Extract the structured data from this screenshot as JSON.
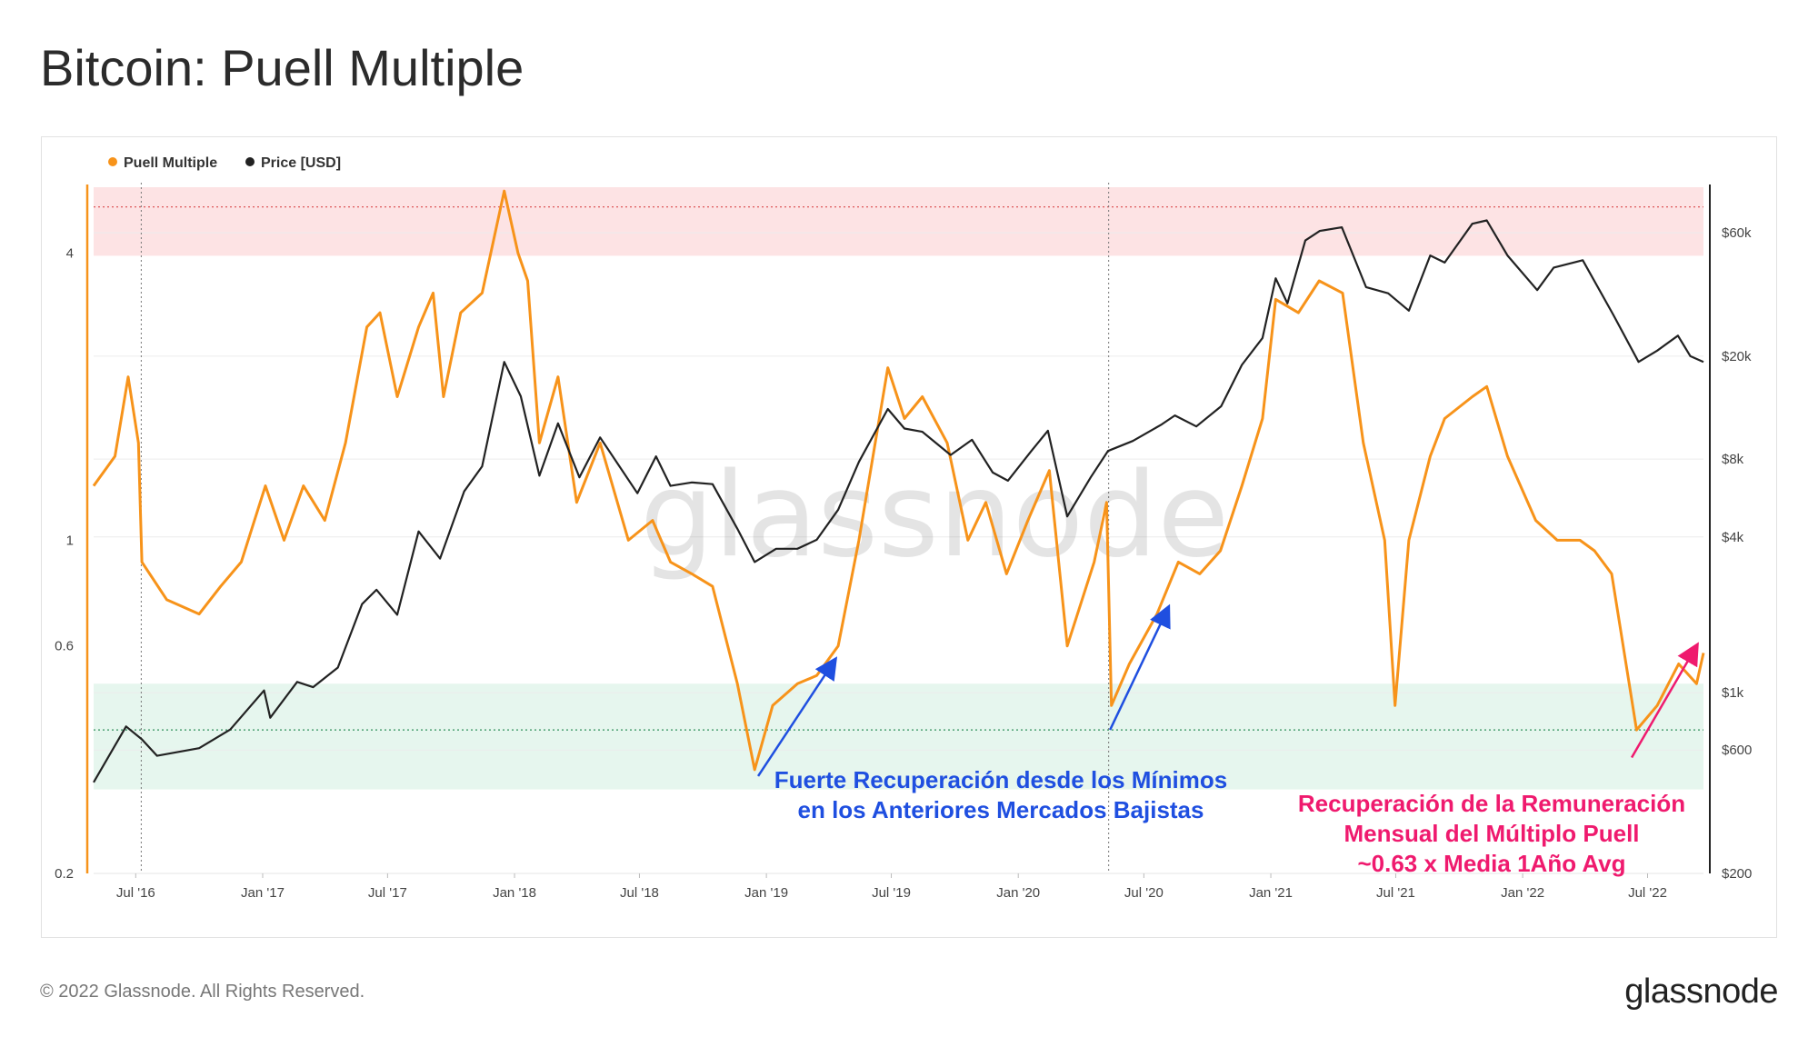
{
  "title": "Bitcoin: Puell Multiple",
  "footer": {
    "copyright": "© 2022 Glassnode. All Rights Reserved.",
    "logo": "glassnode"
  },
  "watermark": "glassnode",
  "legend": [
    {
      "label": "Puell Multiple",
      "color": "#f7931a"
    },
    {
      "label": "Price [USD]",
      "color": "#222222"
    }
  ],
  "colors": {
    "puell": "#f7931a",
    "price": "#222222",
    "top_band": "#fde3e4",
    "bottom_band": "#e6f6ee",
    "annot_blue": "#1f4fe0",
    "annot_pink": "#ef1a6e"
  },
  "annotations": {
    "blue_line1": "Fuerte Recuperación desde los Mínimos",
    "blue_line2": "en los Anteriores Mercados Bajistas",
    "pink_line1": "Recuperación de la Remuneración",
    "pink_line2": "Mensual del Múltiplo Puell",
    "pink_line3": "~0.63 x Media 1Año Avg"
  },
  "chart_data": {
    "type": "line",
    "title": "Bitcoin: Puell Multiple",
    "x_range": [
      "2016-05-01",
      "2022-09-20"
    ],
    "x_ticks": [
      "Jul '16",
      "Jan '17",
      "Jul '17",
      "Jan '18",
      "Jul '18",
      "Jan '19",
      "Jul '19",
      "Jan '20",
      "Jul '20",
      "Jan '21",
      "Jul '21",
      "Jan '22",
      "Jul '22"
    ],
    "left_axis": {
      "scale": "log",
      "range": [
        0.2,
        5.5
      ],
      "ticks": [
        "0.2",
        "0.6",
        "1",
        "4"
      ]
    },
    "right_axis": {
      "scale": "log",
      "range": [
        200,
        90000
      ],
      "ticks": [
        "$200",
        "$600",
        "$1k",
        "$4k",
        "$8k",
        "$20k",
        "$60k"
      ]
    },
    "bands": {
      "overvalued": [
        3.95,
        5.5
      ],
      "undervalued": [
        0.3,
        0.5
      ],
      "ref_lines": [
        5.0,
        0.4
      ]
    },
    "halvings": [
      "2016-07-09",
      "2020-05-11"
    ],
    "series": [
      {
        "name": "Puell Multiple",
        "axis": "left",
        "points": [
          [
            "2016-05-01",
            1.3
          ],
          [
            "2016-06-01",
            1.5
          ],
          [
            "2016-06-20",
            2.2
          ],
          [
            "2016-07-05",
            1.6
          ],
          [
            "2016-07-10",
            0.9
          ],
          [
            "2016-08-15",
            0.75
          ],
          [
            "2016-10-01",
            0.7
          ],
          [
            "2016-11-01",
            0.8
          ],
          [
            "2016-12-01",
            0.9
          ],
          [
            "2017-01-05",
            1.3
          ],
          [
            "2017-02-01",
            1.0
          ],
          [
            "2017-03-01",
            1.3
          ],
          [
            "2017-04-01",
            1.1
          ],
          [
            "2017-05-01",
            1.6
          ],
          [
            "2017-06-01",
            2.8
          ],
          [
            "2017-06-20",
            3.0
          ],
          [
            "2017-07-15",
            2.0
          ],
          [
            "2017-08-15",
            2.8
          ],
          [
            "2017-09-05",
            3.3
          ],
          [
            "2017-09-20",
            2.0
          ],
          [
            "2017-10-15",
            3.0
          ],
          [
            "2017-11-15",
            3.3
          ],
          [
            "2017-12-17",
            5.4
          ],
          [
            "2018-01-06",
            4.0
          ],
          [
            "2018-01-20",
            3.5
          ],
          [
            "2018-02-06",
            1.6
          ],
          [
            "2018-03-05",
            2.2
          ],
          [
            "2018-04-01",
            1.2
          ],
          [
            "2018-05-05",
            1.6
          ],
          [
            "2018-06-15",
            1.0
          ],
          [
            "2018-07-20",
            1.1
          ],
          [
            "2018-08-15",
            0.9
          ],
          [
            "2018-09-15",
            0.85
          ],
          [
            "2018-10-15",
            0.8
          ],
          [
            "2018-11-20",
            0.5
          ],
          [
            "2018-12-15",
            0.33
          ],
          [
            "2019-01-10",
            0.45
          ],
          [
            "2019-02-15",
            0.5
          ],
          [
            "2019-03-15",
            0.52
          ],
          [
            "2019-04-15",
            0.6
          ],
          [
            "2019-05-15",
            1.0
          ],
          [
            "2019-06-26",
            2.3
          ],
          [
            "2019-07-20",
            1.8
          ],
          [
            "2019-08-15",
            2.0
          ],
          [
            "2019-09-20",
            1.6
          ],
          [
            "2019-10-20",
            1.0
          ],
          [
            "2019-11-15",
            1.2
          ],
          [
            "2019-12-15",
            0.85
          ],
          [
            "2020-01-15",
            1.1
          ],
          [
            "2020-02-15",
            1.4
          ],
          [
            "2020-03-12",
            0.6
          ],
          [
            "2020-04-20",
            0.9
          ],
          [
            "2020-05-08",
            1.2
          ],
          [
            "2020-05-15",
            0.45
          ],
          [
            "2020-06-10",
            0.55
          ],
          [
            "2020-07-20",
            0.7
          ],
          [
            "2020-08-20",
            0.9
          ],
          [
            "2020-09-20",
            0.85
          ],
          [
            "2020-10-20",
            0.95
          ],
          [
            "2020-11-20",
            1.3
          ],
          [
            "2020-12-20",
            1.8
          ],
          [
            "2021-01-08",
            3.2
          ],
          [
            "2021-02-10",
            3.0
          ],
          [
            "2021-03-12",
            3.5
          ],
          [
            "2021-04-15",
            3.3
          ],
          [
            "2021-05-15",
            1.6
          ],
          [
            "2021-06-15",
            1.0
          ],
          [
            "2021-06-30",
            0.45
          ],
          [
            "2021-07-20",
            1.0
          ],
          [
            "2021-08-20",
            1.5
          ],
          [
            "2021-09-10",
            1.8
          ],
          [
            "2021-10-20",
            2.0
          ],
          [
            "2021-11-10",
            2.1
          ],
          [
            "2021-12-10",
            1.5
          ],
          [
            "2022-01-20",
            1.1
          ],
          [
            "2022-02-20",
            1.0
          ],
          [
            "2022-03-25",
            1.0
          ],
          [
            "2022-04-15",
            0.95
          ],
          [
            "2022-05-10",
            0.85
          ],
          [
            "2022-06-15",
            0.4
          ],
          [
            "2022-07-15",
            0.45
          ],
          [
            "2022-08-15",
            0.55
          ],
          [
            "2022-09-10",
            0.5
          ],
          [
            "2022-09-20",
            0.58
          ]
        ]
      },
      {
        "name": "Price [USD]",
        "axis": "right",
        "points": [
          [
            "2016-05-01",
            450
          ],
          [
            "2016-06-17",
            740
          ],
          [
            "2016-07-10",
            660
          ],
          [
            "2016-08-01",
            570
          ],
          [
            "2016-10-01",
            610
          ],
          [
            "2016-11-15",
            720
          ],
          [
            "2017-01-03",
            1020
          ],
          [
            "2017-01-12",
            800
          ],
          [
            "2017-02-20",
            1100
          ],
          [
            "2017-03-15",
            1050
          ],
          [
            "2017-04-20",
            1250
          ],
          [
            "2017-05-25",
            2200
          ],
          [
            "2017-06-15",
            2500
          ],
          [
            "2017-07-15",
            2000
          ],
          [
            "2017-08-15",
            4200
          ],
          [
            "2017-09-15",
            3300
          ],
          [
            "2017-10-20",
            6000
          ],
          [
            "2017-11-15",
            7500
          ],
          [
            "2017-12-17",
            19000
          ],
          [
            "2018-01-10",
            14000
          ],
          [
            "2018-02-06",
            6900
          ],
          [
            "2018-03-05",
            11000
          ],
          [
            "2018-04-05",
            6800
          ],
          [
            "2018-05-05",
            9700
          ],
          [
            "2018-06-28",
            5900
          ],
          [
            "2018-07-25",
            8200
          ],
          [
            "2018-08-15",
            6300
          ],
          [
            "2018-09-15",
            6500
          ],
          [
            "2018-10-15",
            6400
          ],
          [
            "2018-11-20",
            4300
          ],
          [
            "2018-12-15",
            3200
          ],
          [
            "2019-01-15",
            3600
          ],
          [
            "2019-02-15",
            3600
          ],
          [
            "2019-03-15",
            3900
          ],
          [
            "2019-04-15",
            5100
          ],
          [
            "2019-05-15",
            7800
          ],
          [
            "2019-06-26",
            12500
          ],
          [
            "2019-07-20",
            10500
          ],
          [
            "2019-08-15",
            10200
          ],
          [
            "2019-09-25",
            8300
          ],
          [
            "2019-10-26",
            9500
          ],
          [
            "2019-11-25",
            7100
          ],
          [
            "2019-12-17",
            6600
          ],
          [
            "2020-01-20",
            8600
          ],
          [
            "2020-02-13",
            10300
          ],
          [
            "2020-03-12",
            4800
          ],
          [
            "2020-04-15",
            6800
          ],
          [
            "2020-05-10",
            8600
          ],
          [
            "2020-06-15",
            9400
          ],
          [
            "2020-07-27",
            10900
          ],
          [
            "2020-08-15",
            11800
          ],
          [
            "2020-09-15",
            10700
          ],
          [
            "2020-10-21",
            12800
          ],
          [
            "2020-11-20",
            18500
          ],
          [
            "2020-12-20",
            23500
          ],
          [
            "2021-01-08",
            40000
          ],
          [
            "2021-01-25",
            32000
          ],
          [
            "2021-02-20",
            56000
          ],
          [
            "2021-03-13",
            61000
          ],
          [
            "2021-04-14",
            63000
          ],
          [
            "2021-05-19",
            37000
          ],
          [
            "2021-06-20",
            35000
          ],
          [
            "2021-07-20",
            30000
          ],
          [
            "2021-08-20",
            49000
          ],
          [
            "2021-09-10",
            46000
          ],
          [
            "2021-10-20",
            65000
          ],
          [
            "2021-11-10",
            67000
          ],
          [
            "2021-12-10",
            49000
          ],
          [
            "2022-01-22",
            36000
          ],
          [
            "2022-02-15",
            44000
          ],
          [
            "2022-03-29",
            47000
          ],
          [
            "2022-05-12",
            29000
          ],
          [
            "2022-06-18",
            19000
          ],
          [
            "2022-07-15",
            21000
          ],
          [
            "2022-08-14",
            24000
          ],
          [
            "2022-09-01",
            20000
          ],
          [
            "2022-09-20",
            19000
          ]
        ]
      }
    ]
  }
}
